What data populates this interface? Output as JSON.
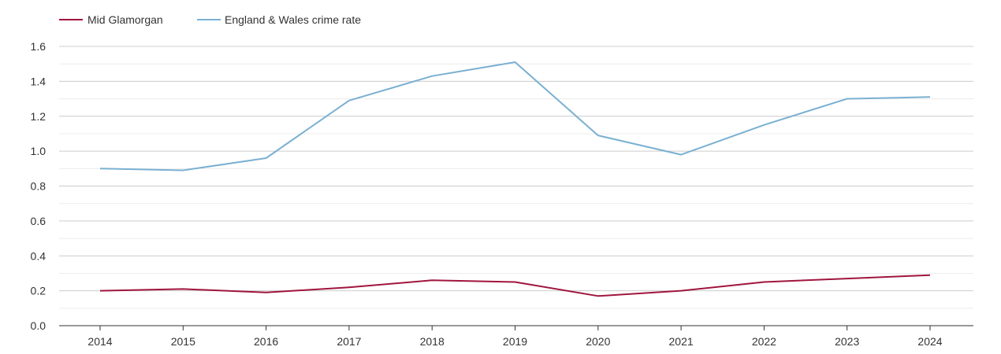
{
  "chart_data": {
    "type": "line",
    "title": "",
    "xlabel": "",
    "ylabel": "",
    "categories": [
      "2014",
      "2015",
      "2016",
      "2017",
      "2018",
      "2019",
      "2020",
      "2021",
      "2022",
      "2023",
      "2024"
    ],
    "ylim": [
      0,
      1.6
    ],
    "yticks": [
      "0.0",
      "0.2",
      "0.4",
      "0.6",
      "0.8",
      "1.0",
      "1.2",
      "1.4",
      "1.6"
    ],
    "grid": true,
    "legend_position": "top-left",
    "series": [
      {
        "name": "Mid Glamorgan",
        "color": "#a0153e",
        "values": [
          0.2,
          0.21,
          0.19,
          0.22,
          0.26,
          0.25,
          0.17,
          0.2,
          0.25,
          0.27,
          0.29
        ]
      },
      {
        "name": "England & Wales crime rate",
        "color": "#7ab0d2",
        "values": [
          0.9,
          0.89,
          0.96,
          1.29,
          1.43,
          1.51,
          1.09,
          0.98,
          1.15,
          1.3,
          1.31
        ]
      }
    ]
  }
}
